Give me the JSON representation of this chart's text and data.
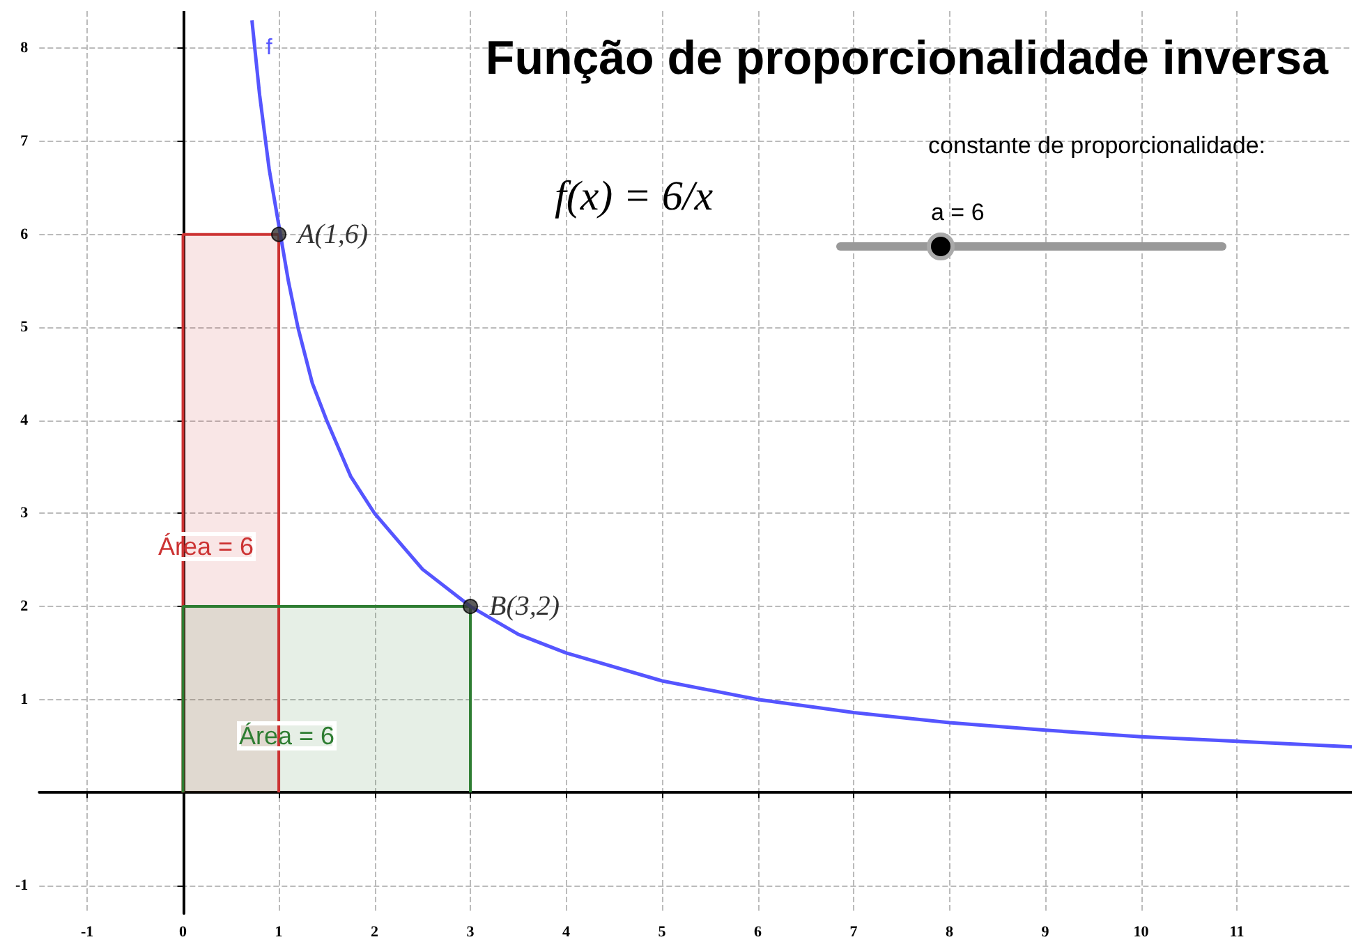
{
  "chart_data": {
    "type": "line",
    "title": "Função de proporcionalidade inversa",
    "xlim": [
      -1.5,
      12.2
    ],
    "ylim": [
      -1.3,
      8.4
    ],
    "xticks": [
      -1,
      0,
      1,
      2,
      3,
      4,
      5,
      6,
      7,
      8,
      9,
      10,
      11
    ],
    "yticks": [
      -1,
      1,
      2,
      3,
      4,
      5,
      6,
      7,
      8
    ],
    "grid": true,
    "legend": false,
    "series": [
      {
        "name": "f",
        "color": "#5555ff",
        "x": [
          0.72,
          0.75,
          0.8,
          0.85,
          0.9,
          1.1,
          1.2,
          1.35,
          1.5,
          1.75,
          2,
          2.25,
          2.5,
          3,
          3.5,
          4,
          5,
          6,
          7,
          8,
          9,
          10,
          11,
          12.2
        ],
        "values": [
          8.3,
          8,
          7.5,
          7.1,
          6.7,
          5.5,
          5,
          4.4,
          4,
          3.4,
          3,
          2.7,
          2.4,
          2,
          1.7,
          1.5,
          1.2,
          1,
          0.86,
          0.75,
          0.67,
          0.6,
          0.55,
          0.49
        ]
      },
      {
        "type": "area",
        "color": "#cc3333",
        "x": [
          0,
          0,
          1,
          1
        ],
        "values": [
          0,
          6,
          6,
          0
        ]
      },
      {
        "type": "area",
        "color": "#2e7d32",
        "x": [
          0,
          0,
          3,
          3
        ],
        "values": [
          0,
          2,
          2,
          0
        ]
      },
      {
        "type": "scatter",
        "color": "#333333",
        "marker": "circle",
        "x": [
          1,
          3
        ],
        "values": [
          6,
          2
        ],
        "value_labels": [
          "A(1,6)",
          "B(3,2)"
        ]
      }
    ],
    "annotations": [
      "constante de proporcionalidade:",
      "a = 6",
      "f(x) = 6/x",
      "Área = 6",
      "Área = 6"
    ]
  }
}
